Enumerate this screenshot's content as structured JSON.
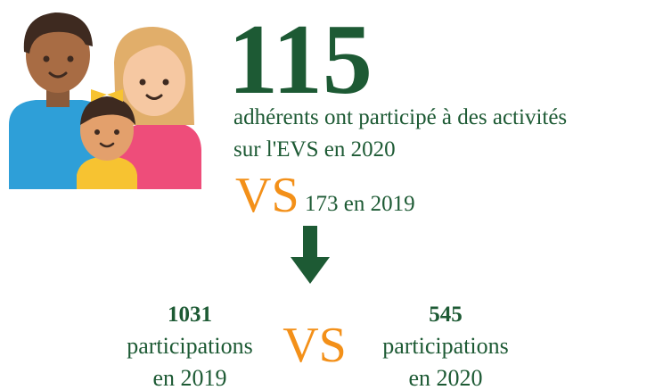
{
  "headline": {
    "number": "115",
    "lines": [
      "adhérents ont participé à des activités",
      "sur l'EVS en 2020"
    ]
  },
  "comparison": {
    "vs": "VS",
    "text": "173 en 2019"
  },
  "left": {
    "number": "1031",
    "lines": [
      "participations",
      "en 2019"
    ]
  },
  "middle_vs": "VS",
  "right": {
    "number": "545",
    "lines": [
      "participations",
      "en 2020"
    ]
  }
}
